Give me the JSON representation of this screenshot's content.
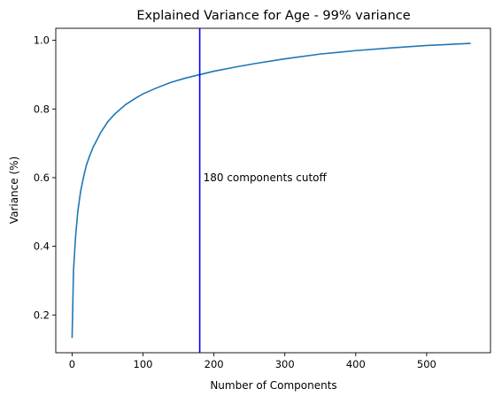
{
  "chart_data": {
    "type": "line",
    "title": "Explained Variance for Age - 99% variance",
    "xlabel": "Number of Components",
    "ylabel": "Variance (%)",
    "xlim": [
      -23,
      590
    ],
    "ylim": [
      0.09,
      1.035
    ],
    "x_ticks": [
      0,
      100,
      200,
      300,
      400,
      500
    ],
    "y_ticks": [
      0.2,
      0.4,
      0.6,
      0.8,
      1.0
    ],
    "x_tick_labels": [
      "0",
      "100",
      "200",
      "300",
      "400",
      "500"
    ],
    "y_tick_labels": [
      "0.2",
      "0.4",
      "0.6",
      "0.8",
      "1.0"
    ],
    "grid": false,
    "series": [
      {
        "color": "#1f77b4",
        "x": [
          0,
          2,
          5,
          8,
          12,
          16,
          20,
          25,
          30,
          40,
          50,
          60,
          75,
          90,
          100,
          120,
          140,
          160,
          180,
          200,
          230,
          260,
          300,
          350,
          400,
          450,
          500,
          562
        ],
        "y": [
          0.133,
          0.33,
          0.43,
          0.5,
          0.56,
          0.6,
          0.635,
          0.665,
          0.69,
          0.73,
          0.762,
          0.785,
          0.812,
          0.832,
          0.844,
          0.862,
          0.878,
          0.89,
          0.9,
          0.91,
          0.922,
          0.933,
          0.946,
          0.96,
          0.97,
          0.978,
          0.985,
          0.991
        ]
      }
    ],
    "vline": {
      "x": 180,
      "color": "#0000ff"
    },
    "annotation": {
      "text": "180 components cutoff",
      "x": 185,
      "y": 0.6
    }
  }
}
